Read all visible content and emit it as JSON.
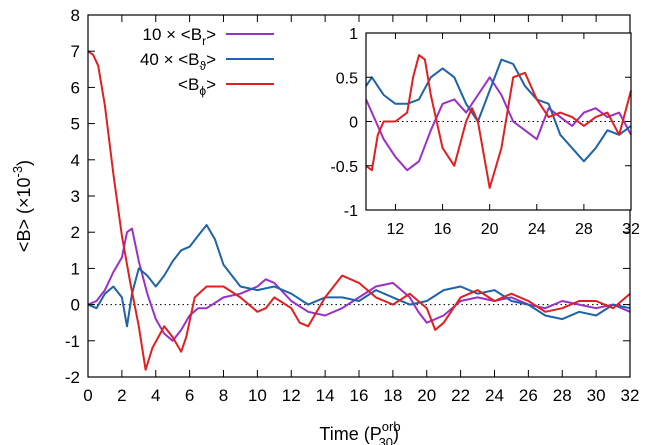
{
  "chart_data": [
    {
      "type": "line",
      "id": "main",
      "xlabel": "Time (P",
      "xlabel_sup": "orb",
      "xlabel_sub": "30",
      "xlabel_tail": ")",
      "ylabel": "<B> (×10",
      "ylabel_sup": "-3",
      "ylabel_tail": ")",
      "xlim": [
        0,
        32
      ],
      "ylim": [
        -2,
        8
      ],
      "xticks": [
        "0",
        "2",
        "4",
        "6",
        "8",
        "10",
        "12",
        "14",
        "16",
        "18",
        "20",
        "22",
        "24",
        "26",
        "28",
        "30",
        "32"
      ],
      "yticks": [
        "-2",
        "-1",
        "0",
        "1",
        "2",
        "3",
        "4",
        "5",
        "6",
        "7",
        "8"
      ],
      "zero_line": true,
      "legend_position": "top-left",
      "series": [
        {
          "name": "10 × <B",
          "name_sub": "r",
          "name_tail": ">",
          "color": "#9b30c8",
          "x": [
            0,
            0.5,
            1,
            1.5,
            2,
            2.3,
            2.6,
            3,
            3.5,
            4,
            4.5,
            5,
            5.5,
            6,
            6.5,
            7,
            8,
            9,
            10,
            10.5,
            11,
            12,
            13,
            14,
            15,
            16,
            17,
            18,
            19,
            19.5,
            20,
            21,
            22,
            23,
            24,
            25,
            26,
            27,
            28,
            29,
            30,
            31,
            32
          ],
          "y": [
            0,
            0.1,
            0.4,
            0.9,
            1.3,
            2.0,
            2.1,
            1.2,
            0.3,
            -0.4,
            -0.8,
            -1.0,
            -0.7,
            -0.3,
            -0.1,
            -0.1,
            0.2,
            0.3,
            0.5,
            0.7,
            0.6,
            0.1,
            -0.2,
            -0.3,
            -0.1,
            0.2,
            0.5,
            0.6,
            0.2,
            -0.2,
            -0.5,
            -0.3,
            0.1,
            0.2,
            0.1,
            0.2,
            0.0,
            -0.1,
            0.1,
            0.0,
            -0.1,
            0.0,
            -0.2
          ]
        },
        {
          "name": "40 × <B",
          "name_sub": "ϑ",
          "name_tail": ">",
          "color": "#1f63a8",
          "x": [
            0,
            0.5,
            1,
            1.5,
            2,
            2.3,
            2.6,
            3,
            3.5,
            4,
            4.5,
            5,
            5.5,
            6,
            6.5,
            7,
            7.5,
            8,
            9,
            10,
            11,
            12,
            13,
            14,
            15,
            16,
            17,
            18,
            19,
            20,
            21,
            22,
            23,
            24,
            25,
            26,
            27,
            28,
            29,
            30,
            31,
            32
          ],
          "y": [
            0,
            -0.1,
            0.3,
            0.5,
            0.2,
            -0.6,
            0.3,
            1.0,
            0.8,
            0.5,
            0.8,
            1.2,
            1.5,
            1.6,
            1.9,
            2.2,
            1.8,
            1.1,
            0.5,
            0.4,
            0.5,
            0.3,
            0.0,
            0.2,
            0.2,
            0.1,
            0.4,
            0.2,
            0.0,
            0.1,
            0.4,
            0.5,
            0.3,
            0.4,
            0.1,
            0.0,
            -0.3,
            -0.4,
            -0.2,
            -0.3,
            0.0,
            -0.1
          ]
        },
        {
          "name": "<B",
          "name_sub": "ϕ",
          "name_tail": ">",
          "color": "#e02020",
          "x": [
            0,
            0.3,
            0.6,
            1,
            1.5,
            2,
            2.5,
            3,
            3.4,
            3.8,
            4.5,
            5,
            5.5,
            5.8,
            6.3,
            7,
            8,
            9,
            10,
            10.5,
            11,
            12,
            12.5,
            13,
            14,
            15,
            16,
            17,
            18,
            19,
            20,
            20.5,
            21,
            22,
            23,
            24,
            25,
            26,
            27,
            28,
            29,
            30,
            31,
            32
          ],
          "y": [
            7,
            6.9,
            6.6,
            5.5,
            3.6,
            1.9,
            0.6,
            -0.6,
            -1.8,
            -1.2,
            -0.6,
            -0.9,
            -1.3,
            -0.9,
            0.2,
            0.5,
            0.5,
            0.2,
            -0.2,
            -0.1,
            0.2,
            -0.1,
            -0.5,
            -0.6,
            0.2,
            0.8,
            0.6,
            0.2,
            0.0,
            0.3,
            -0.1,
            -0.7,
            -0.5,
            0.2,
            0.4,
            0.1,
            0.3,
            0.1,
            -0.2,
            -0.1,
            0.1,
            0.1,
            -0.1,
            0.3
          ]
        }
      ]
    },
    {
      "type": "line",
      "id": "inset",
      "xlim": [
        9.5,
        32
      ],
      "ylim": [
        -1,
        1
      ],
      "xticks": [
        "12",
        "16",
        "20",
        "24",
        "28",
        "32"
      ],
      "yticks": [
        "-1",
        "-0.5",
        "0",
        "0.5",
        "1"
      ],
      "zero_line": true,
      "series": [
        {
          "color": "#9b30c8",
          "x": [
            9.5,
            10,
            11,
            12,
            13,
            14,
            15,
            16,
            17,
            18,
            19,
            20,
            21,
            22,
            23,
            24,
            25,
            26,
            27,
            28,
            29,
            30,
            31,
            32
          ],
          "y": [
            0.25,
            0.1,
            -0.2,
            -0.4,
            -0.55,
            -0.45,
            -0.1,
            0.2,
            0.25,
            0.1,
            0.3,
            0.5,
            0.3,
            0.0,
            -0.1,
            -0.2,
            0.15,
            0.05,
            -0.05,
            0.1,
            0.15,
            0.05,
            0.1,
            -0.15
          ]
        },
        {
          "color": "#1f63a8",
          "x": [
            9.5,
            10,
            11,
            12,
            13,
            14,
            15,
            16,
            17,
            18,
            19,
            20,
            21,
            22,
            23,
            24,
            25,
            26,
            27,
            28,
            29,
            30,
            31,
            32
          ],
          "y": [
            0.4,
            0.5,
            0.3,
            0.2,
            0.2,
            0.25,
            0.5,
            0.6,
            0.5,
            0.2,
            0.0,
            0.35,
            0.7,
            0.65,
            0.4,
            0.25,
            0.2,
            -0.15,
            -0.3,
            -0.45,
            -0.3,
            -0.1,
            -0.15,
            -0.05
          ]
        },
        {
          "color": "#e02020",
          "x": [
            9.5,
            10,
            10.5,
            11,
            12,
            13,
            13.5,
            14,
            14.5,
            15,
            16,
            17,
            18,
            18.5,
            19,
            20,
            21,
            22,
            23,
            24,
            25,
            26,
            27,
            28,
            29,
            30,
            31,
            32
          ],
          "y": [
            -0.5,
            -0.55,
            -0.15,
            0.0,
            0.0,
            0.1,
            0.5,
            0.75,
            0.7,
            0.3,
            -0.3,
            -0.5,
            0.0,
            0.15,
            0.0,
            -0.75,
            -0.3,
            0.5,
            0.55,
            0.25,
            0.05,
            0.1,
            0.05,
            -0.05,
            0.05,
            0.1,
            -0.15,
            0.35
          ]
        }
      ]
    }
  ]
}
